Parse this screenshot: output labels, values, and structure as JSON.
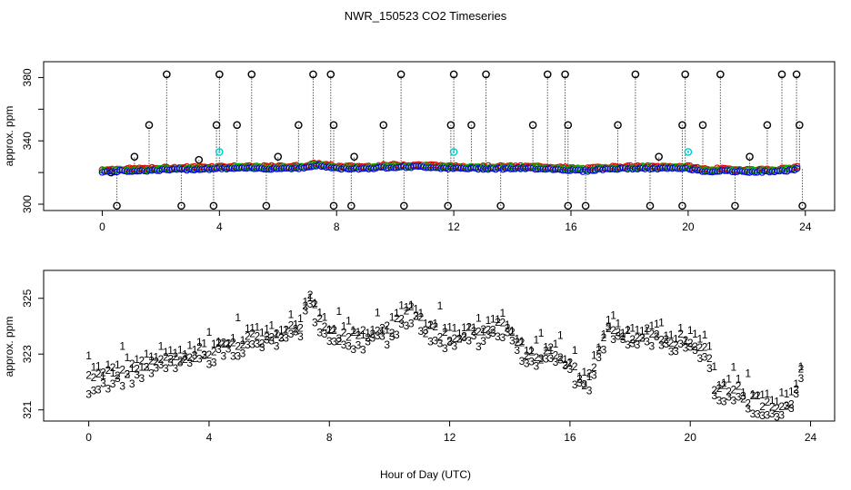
{
  "title": "NWR_150523  CO2 Timeseries",
  "xlabel": "Hour of Day (UTC)",
  "colors": {
    "series1": "#e00000",
    "series2": "#00bb00",
    "series3": "#0000dd",
    "raw": "#000000",
    "flag": "#00cccc",
    "axis": "#000000"
  },
  "chart_data": [
    {
      "type": "scatter",
      "name": "top-panel",
      "ylabel": "approx. ppm",
      "xlim": [
        -2,
        25
      ],
      "ylim": [
        296,
        390
      ],
      "xticks": [
        0,
        4,
        8,
        12,
        16,
        20,
        24
      ],
      "xtick_labels": [
        "0",
        "4",
        "8",
        "12",
        "16",
        "20",
        "24"
      ],
      "yticks": [
        300,
        320,
        340,
        360,
        380
      ],
      "ytick_labels": [
        "300",
        "",
        "340",
        "",
        "380"
      ],
      "smoothed": {
        "x": [
          0,
          1,
          2,
          3,
          4,
          5,
          6,
          7,
          7.3,
          8,
          9,
          10,
          11,
          12,
          13,
          14,
          15,
          16,
          16.5,
          17,
          18,
          19,
          20,
          20.7,
          21,
          22,
          23,
          23.7
        ],
        "y": [
          321,
          321.5,
          322,
          322.5,
          323,
          323,
          323,
          323.5,
          325,
          323,
          323,
          324,
          324,
          323,
          323,
          323,
          323,
          322,
          321.5,
          322.5,
          323,
          323,
          323,
          321,
          321.5,
          321,
          321,
          322.5
        ]
      },
      "spike_x": [
        0.3,
        1.1,
        1.6,
        2.2,
        3.3,
        3.9,
        4.0,
        4.6,
        5.1,
        6.0,
        6.7,
        7.2,
        7.8,
        7.9,
        8.6,
        9.6,
        10.2,
        11.9,
        12.0,
        12.6,
        13.1,
        14.7,
        15.2,
        15.8,
        15.9,
        17.6,
        18.2,
        19.0,
        19.8,
        19.9,
        20.5,
        21.1,
        22.1,
        22.7,
        23.2,
        23.7,
        23.8
      ],
      "spike_y": [
        320,
        330,
        350,
        382,
        328,
        350,
        382,
        350,
        382,
        330,
        350,
        382,
        382,
        350,
        330,
        350,
        382,
        350,
        382,
        350,
        382,
        350,
        382,
        382,
        350,
        350,
        382,
        330,
        350,
        382,
        350,
        382,
        330,
        350,
        382,
        382,
        350
      ],
      "low_x": [
        0.5,
        2.7,
        3.8,
        5.6,
        7.9,
        8.5,
        10.3,
        11.8,
        13.6,
        15.9,
        16.5,
        18.7,
        19.8,
        21.6,
        23.9
      ],
      "low_y": [
        299,
        299,
        299,
        299,
        299,
        299,
        299,
        299,
        299,
        299,
        299,
        299,
        299,
        299,
        299
      ],
      "flag_x": [
        4.0,
        12.0,
        20.0
      ],
      "flag_y": [
        333,
        333,
        333
      ]
    },
    {
      "type": "scatter",
      "name": "bottom-panel",
      "ylabel": "approx. ppm",
      "xlim": [
        -1.5,
        24.8
      ],
      "ylim": [
        320.6,
        326.0
      ],
      "xticks": [
        0,
        4,
        8,
        12,
        16,
        20,
        24
      ],
      "xtick_labels": [
        "0",
        "4",
        "8",
        "12",
        "16",
        "20",
        "24"
      ],
      "yticks": [
        321,
        323,
        325
      ],
      "ytick_labels": [
        "321",
        "323",
        "325"
      ],
      "series": [
        {
          "name": "1",
          "marker": "1",
          "offset": 0.35
        },
        {
          "name": "2",
          "marker": "2",
          "offset": 0.15
        },
        {
          "name": "3",
          "marker": "3",
          "offset": -0.15
        }
      ],
      "base": {
        "x": [
          0,
          0.5,
          1,
          1.5,
          2,
          2.5,
          3,
          3.5,
          4,
          4.5,
          5,
          5.5,
          6,
          6.5,
          7,
          7.3,
          7.6,
          8,
          8.5,
          9,
          9.5,
          10,
          10.5,
          10.8,
          11.2,
          11.6,
          12,
          12.5,
          13,
          13.5,
          13.8,
          14.2,
          14.6,
          15,
          15.5,
          16,
          16.3,
          16.6,
          17,
          17.3,
          17.6,
          18,
          18.5,
          19,
          19.5,
          20,
          20.3,
          20.6,
          20.8,
          21.2,
          21.6,
          22,
          22.5,
          23,
          23.4,
          23.7
        ],
        "y": [
          321.9,
          322.1,
          322.2,
          322.3,
          322.5,
          322.6,
          322.8,
          322.9,
          323.0,
          323.2,
          323.3,
          323.4,
          323.5,
          323.6,
          323.8,
          325.0,
          324.2,
          323.6,
          323.5,
          323.5,
          323.6,
          323.7,
          324.3,
          324.5,
          323.8,
          323.7,
          323.5,
          323.6,
          323.6,
          323.7,
          324.0,
          323.2,
          322.9,
          322.8,
          323.0,
          322.5,
          322.0,
          321.9,
          323.0,
          324.0,
          323.6,
          323.5,
          323.6,
          323.6,
          323.4,
          323.3,
          323.2,
          323.1,
          321.5,
          321.7,
          321.6,
          321.2,
          321.1,
          321.1,
          321.2,
          322.5
        ]
      }
    }
  ]
}
